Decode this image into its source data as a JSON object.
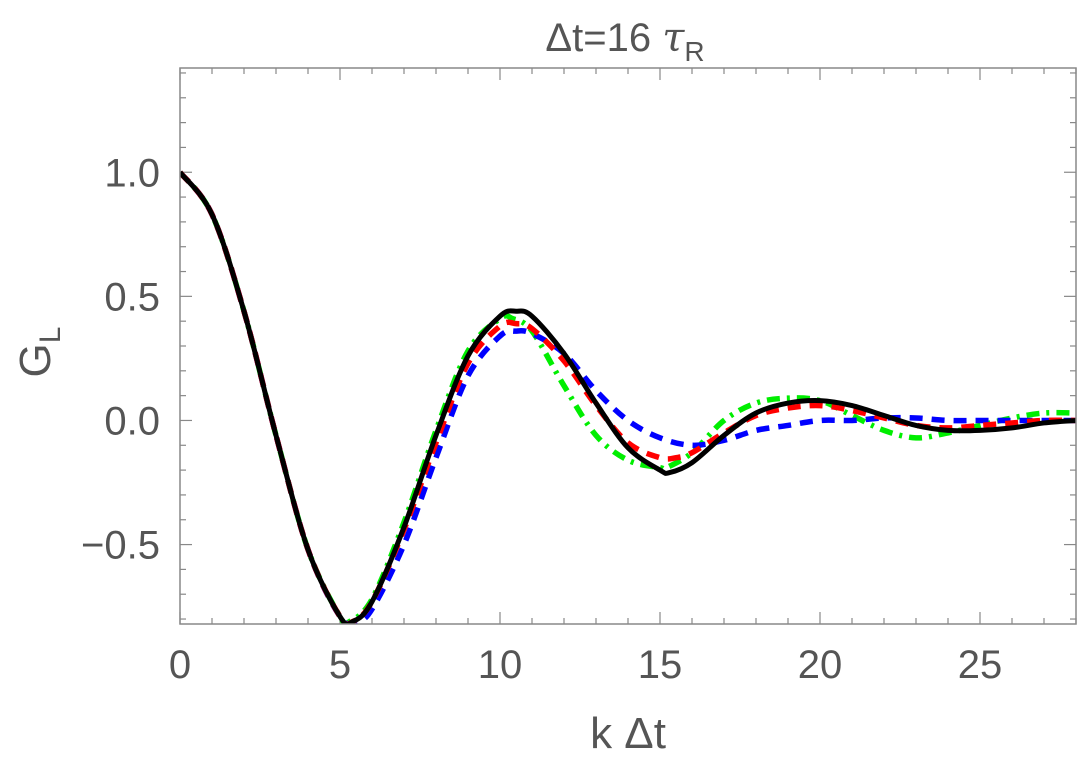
{
  "chart_data": {
    "type": "line",
    "title": {
      "main": "Δt=16 ",
      "tau": "τ",
      "tau_sub": "R"
    },
    "xlabel": "k Δt",
    "ylabel": {
      "main": "G",
      "sub": "L"
    },
    "xlim": [
      0,
      28
    ],
    "ylim": [
      -0.82,
      1.42
    ],
    "xticks": [
      0,
      5,
      10,
      15,
      20,
      25
    ],
    "yticks": [
      -0.5,
      0.0,
      0.5,
      1.0
    ],
    "xtick_labels": [
      "0",
      "5",
      "10",
      "15",
      "20",
      "25"
    ],
    "ytick_labels": [
      "−0.5",
      "0.0",
      "0.5",
      "1.0"
    ],
    "grid": false,
    "series": [
      {
        "color": "#000000",
        "style": "solid",
        "x": [
          0,
          1,
          2,
          3,
          4,
          5,
          5.4,
          6,
          7,
          8,
          9,
          10,
          10.5,
          11,
          12,
          13,
          14,
          15,
          15.3,
          16,
          17,
          18,
          19,
          20,
          21,
          22,
          23,
          24,
          25,
          26,
          27,
          28
        ],
        "y": [
          1.0,
          0.83,
          0.44,
          -0.06,
          -0.52,
          -0.79,
          -0.81,
          -0.73,
          -0.43,
          -0.06,
          0.26,
          0.42,
          0.44,
          0.42,
          0.27,
          0.07,
          -0.11,
          -0.2,
          -0.21,
          -0.17,
          -0.06,
          0.03,
          0.07,
          0.08,
          0.06,
          0.02,
          -0.02,
          -0.04,
          -0.04,
          -0.03,
          -0.01,
          0.0
        ]
      },
      {
        "color": "#ff0000",
        "style": "dashed",
        "x": [
          0,
          1,
          2,
          3,
          4,
          5,
          5.4,
          6,
          7,
          8,
          9,
          10,
          10.5,
          11,
          12,
          13,
          14,
          15,
          15.5,
          16,
          17,
          18,
          19,
          20,
          21,
          22,
          23,
          24,
          25,
          26,
          27,
          28
        ],
        "y": [
          1.0,
          0.83,
          0.44,
          -0.06,
          -0.52,
          -0.79,
          -0.81,
          -0.73,
          -0.44,
          -0.09,
          0.23,
          0.38,
          0.39,
          0.37,
          0.24,
          0.06,
          -0.09,
          -0.15,
          -0.15,
          -0.13,
          -0.05,
          0.02,
          0.05,
          0.06,
          0.04,
          0.01,
          -0.02,
          -0.03,
          -0.02,
          -0.01,
          0.0,
          0.0
        ]
      },
      {
        "color": "#0000ff",
        "style": "dashed",
        "x": [
          0,
          1,
          2,
          3,
          4,
          5,
          5.5,
          6,
          7,
          8,
          9,
          10,
          10.5,
          11,
          12,
          13,
          14,
          15,
          16,
          17,
          18,
          19,
          20,
          21,
          22,
          23,
          24,
          25,
          26,
          27,
          28
        ],
        "y": [
          1.0,
          0.83,
          0.44,
          -0.06,
          -0.52,
          -0.79,
          -0.81,
          -0.76,
          -0.5,
          -0.15,
          0.18,
          0.34,
          0.36,
          0.35,
          0.27,
          0.12,
          0.0,
          -0.07,
          -0.1,
          -0.08,
          -0.04,
          -0.02,
          0.0,
          0.0,
          0.01,
          0.01,
          0.0,
          0.0,
          0.0,
          0.0,
          0.0
        ]
      },
      {
        "color": "#00ee00",
        "style": "dashdot",
        "x": [
          0,
          1,
          2,
          3,
          4,
          5,
          5.3,
          6,
          7,
          8,
          9,
          10,
          10.4,
          11,
          12,
          13,
          14,
          15,
          15.2,
          16,
          17,
          18,
          19,
          20,
          21,
          22,
          23,
          24,
          25,
          26,
          27,
          28
        ],
        "y": [
          1.0,
          0.83,
          0.44,
          -0.06,
          -0.52,
          -0.79,
          -0.81,
          -0.72,
          -0.41,
          -0.04,
          0.28,
          0.41,
          0.41,
          0.36,
          0.14,
          -0.06,
          -0.16,
          -0.19,
          -0.19,
          -0.13,
          0.0,
          0.07,
          0.09,
          0.08,
          0.02,
          -0.04,
          -0.07,
          -0.05,
          -0.02,
          0.01,
          0.03,
          0.03
        ]
      }
    ]
  }
}
